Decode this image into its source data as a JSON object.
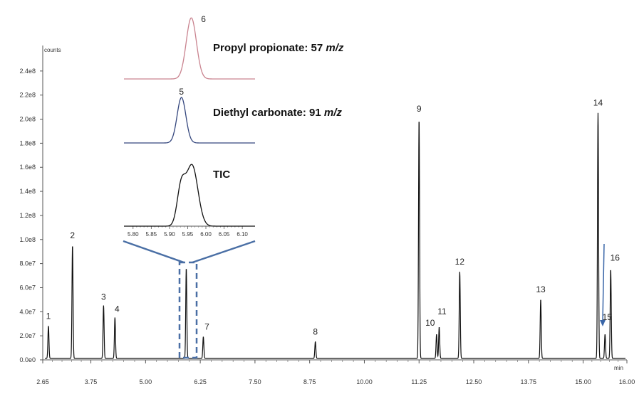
{
  "chart_data": {
    "type": "line",
    "title": "",
    "xlabel": "min",
    "ylabel": "counts",
    "xlim": [
      2.65,
      16.0
    ],
    "ylim": [
      0,
      260000000
    ],
    "x_ticks": [
      "2.65",
      "3.75",
      "5.00",
      "6.25",
      "7.50",
      "8.75",
      "10.00",
      "11.25",
      "12.50",
      "13.75",
      "15.00",
      "16.00"
    ],
    "x_tick_values": [
      2.65,
      3.75,
      5.0,
      6.25,
      7.5,
      8.75,
      10.0,
      11.25,
      12.5,
      13.75,
      15.0,
      16.0
    ],
    "y_ticks": [
      "0.0e0",
      "2.0e7",
      "4.0e7",
      "6.0e7",
      "8.0e7",
      "1.0e8",
      "1.2e8",
      "1.4e8",
      "1.6e8",
      "1.8e8",
      "2.0e8",
      "2.2e8",
      "2.4e8"
    ],
    "y_tick_values": [
      0,
      20000000,
      40000000,
      60000000,
      80000000,
      100000000,
      120000000,
      140000000,
      160000000,
      180000000,
      200000000,
      220000000,
      240000000
    ],
    "peaks": [
      {
        "label": "1",
        "rt": 2.78,
        "height": 27000000
      },
      {
        "label": "2",
        "rt": 3.33,
        "height": 94000000
      },
      {
        "label": "3",
        "rt": 4.04,
        "height": 44000000
      },
      {
        "label": "4",
        "rt": 4.3,
        "height": 34000000
      },
      {
        "label": "5",
        "rt": 5.93,
        "height": 75000000
      },
      {
        "label": "6",
        "rt": 5.96,
        "height": 0
      },
      {
        "label": "7",
        "rt": 6.32,
        "height": 18000000
      },
      {
        "label": "8",
        "rt": 8.88,
        "height": 14000000
      },
      {
        "label": "9",
        "rt": 11.25,
        "height": 199000000
      },
      {
        "label": "10",
        "rt": 11.65,
        "height": 20000000
      },
      {
        "label": "11",
        "rt": 11.71,
        "height": 26000000
      },
      {
        "label": "12",
        "rt": 12.18,
        "height": 72000000
      },
      {
        "label": "13",
        "rt": 14.03,
        "height": 49000000
      },
      {
        "label": "14",
        "rt": 15.34,
        "height": 204000000
      },
      {
        "label": "15",
        "rt": 15.5,
        "height": 20000000
      },
      {
        "label": "16",
        "rt": 15.63,
        "height": 74000000
      }
    ],
    "inset": {
      "x_ticks": [
        "5.80",
        "5.85",
        "5.90",
        "5.95",
        "6.00",
        "6.05",
        "6.10"
      ],
      "x_tick_values": [
        5.8,
        5.85,
        5.9,
        5.95,
        6.0,
        6.05,
        6.1
      ],
      "xlim": [
        5.775,
        6.135
      ],
      "traces": [
        {
          "name": "Propyl propionate: 57 m/z",
          "name_prefix": "Propyl propionate: 57 ",
          "name_suffix": "m/z",
          "peak_label": "6",
          "color": "#c9838f",
          "peaks": [
            {
              "rt": 5.96,
              "height": 1.0,
              "width": 0.014
            }
          ]
        },
        {
          "name": "Diethyl carbonate: 91 m/z",
          "name_prefix": "Diethyl carbonate: 91 ",
          "name_suffix": "m/z",
          "peak_label": "5",
          "color": "#34467d",
          "peaks": [
            {
              "rt": 5.933,
              "height": 1.0,
              "width": 0.012
            }
          ]
        },
        {
          "name": "TIC",
          "name_prefix": "TIC",
          "name_suffix": "",
          "peak_label": "",
          "color": "#111111",
          "peaks": [
            {
              "rt": 5.932,
              "height": 0.58,
              "width": 0.011
            },
            {
              "rt": 5.962,
              "height": 0.95,
              "width": 0.016
            }
          ]
        }
      ]
    },
    "colors": {
      "trace": "#111111",
      "axis": "#555555",
      "zoom": "#4a6fa5",
      "arrow": "#3a66a8"
    }
  }
}
